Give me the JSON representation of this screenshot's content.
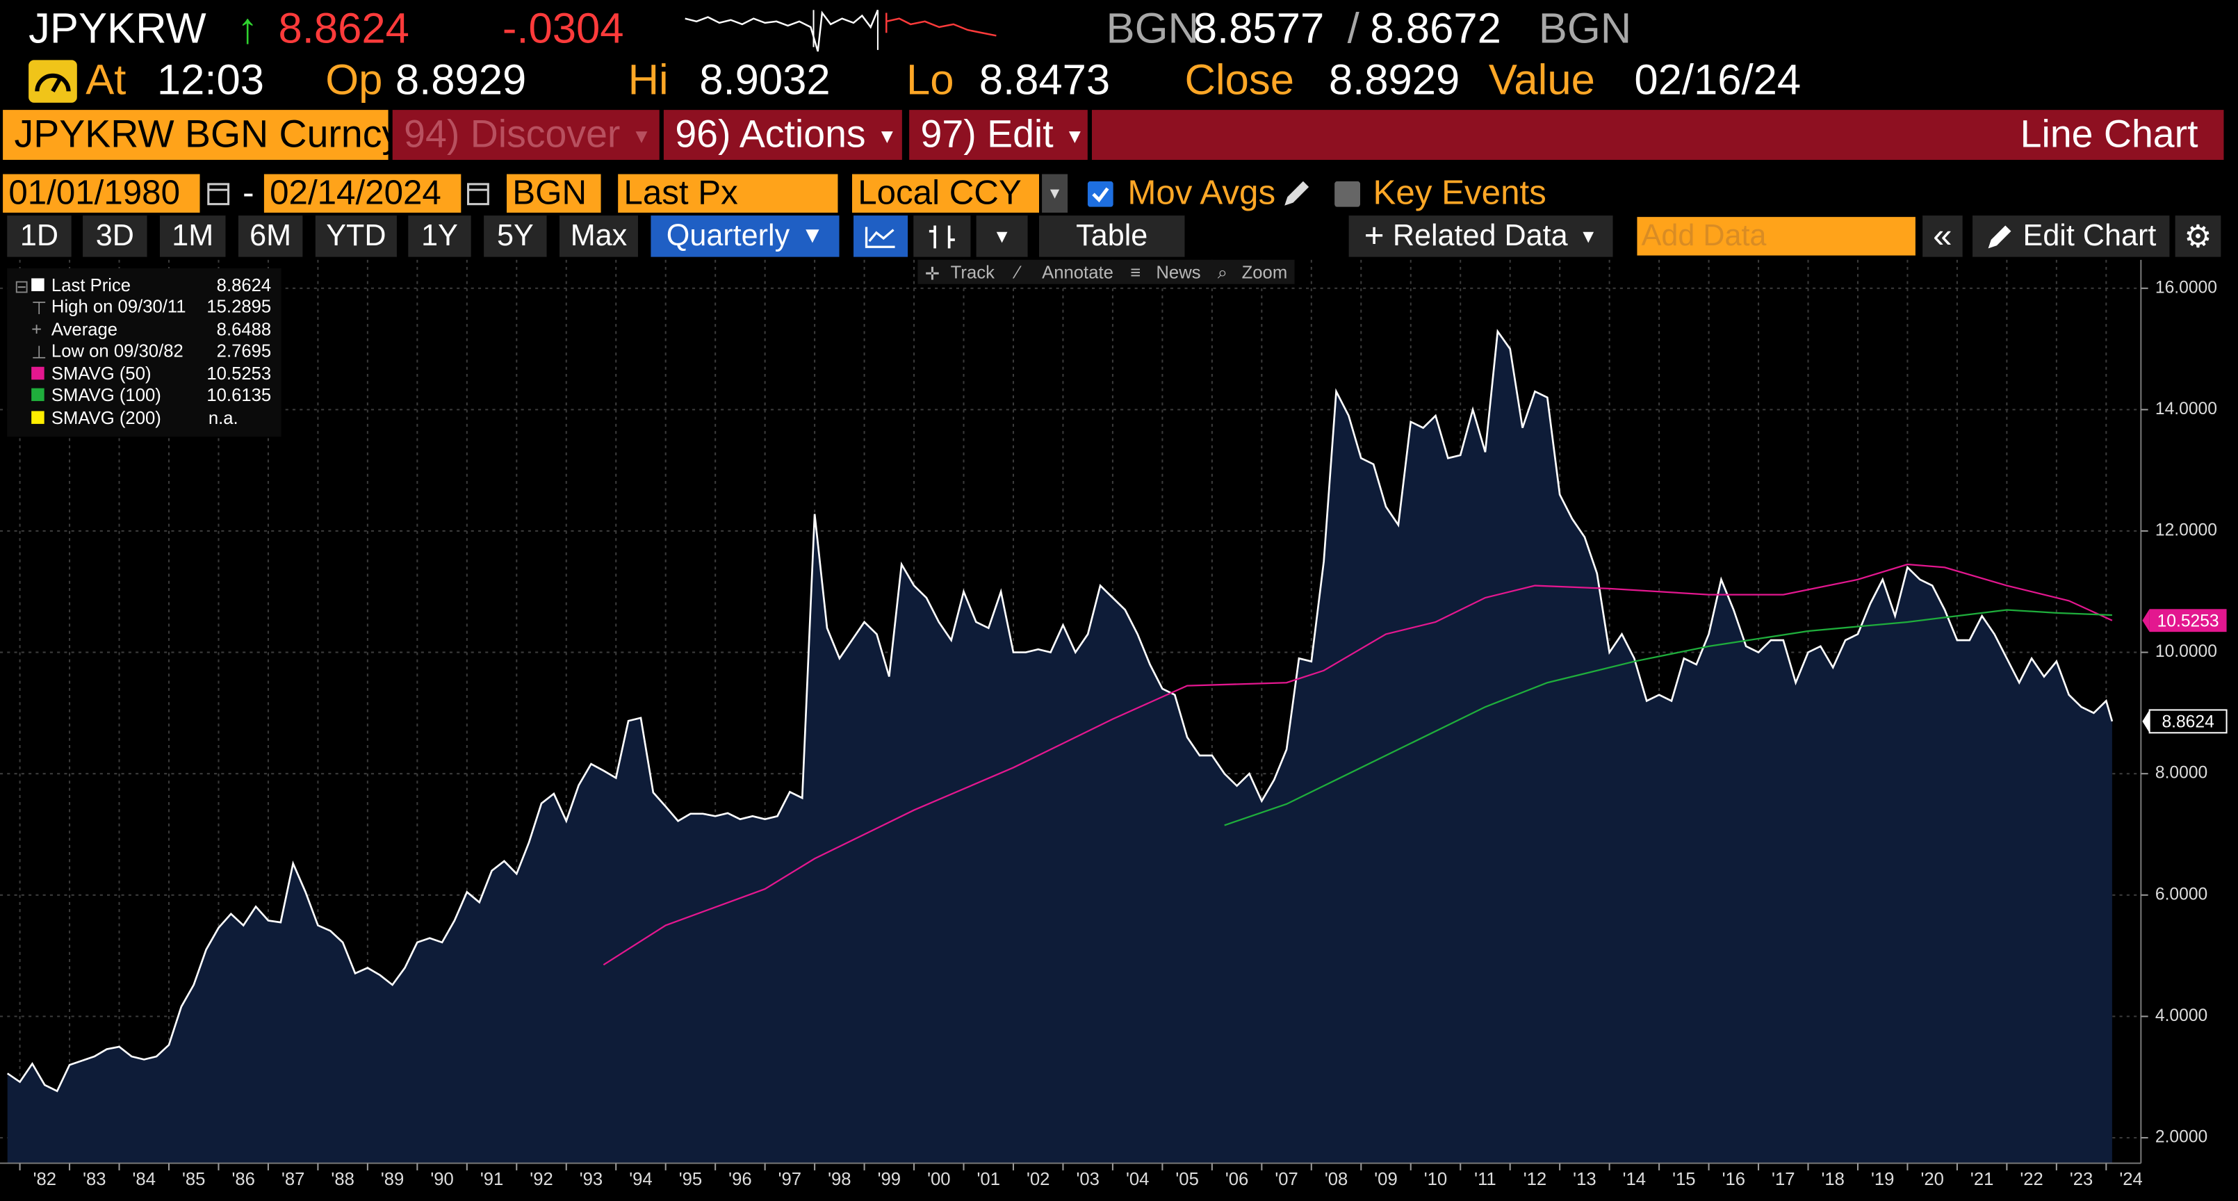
{
  "header": {
    "ticker": "JPYKRW",
    "arrow": "↑",
    "last": "8.8624",
    "change": "-.0304",
    "bid_source": "BGN",
    "bid": "8.8577",
    "slash": "/",
    "ask": "8.8672",
    "ask_source": "BGN"
  },
  "quote": {
    "at_label": "At",
    "at": "12:03",
    "open_label": "Op",
    "open": "8.8929",
    "high_label": "Hi",
    "high": "8.9032",
    "low_label": "Lo",
    "low": "8.8473",
    "close_label": "Close",
    "close": "8.8929",
    "value_label": "Value",
    "value_date": "02/16/24"
  },
  "menu": {
    "security": "JPYKRW BGN Curncy",
    "discover": "94) Discover",
    "actions": "96) Actions",
    "edit": "97) Edit",
    "view": "Line Chart"
  },
  "settings": {
    "start": "01/01/1980",
    "dash": "-",
    "end": "02/14/2024",
    "source": "BGN",
    "field": "Last Px",
    "currency": "Local CCY",
    "mov_avgs": "Mov Avgs",
    "key_events": "Key Events"
  },
  "toolbar": {
    "periods": [
      "1D",
      "3D",
      "1M",
      "6M",
      "YTD",
      "1Y",
      "5Y",
      "Max"
    ],
    "frequency": "Quarterly",
    "table": "Table",
    "related": "Related Data",
    "add_data": "Add Data",
    "edit_chart": "Edit Chart"
  },
  "chart_tools": [
    "Track",
    "Annotate",
    "News",
    "Zoom"
  ],
  "chart_data": {
    "type": "line",
    "grid": true,
    "xlim": [
      1981.6,
      2024.7
    ],
    "ylim": [
      1.58,
      16.47
    ],
    "yticks": [
      {
        "value": 2,
        "label": "2.0000"
      },
      {
        "value": 4,
        "label": "4.0000"
      },
      {
        "value": 6,
        "label": "6.0000"
      },
      {
        "value": 8,
        "label": "8.0000"
      },
      {
        "value": 10,
        "label": "10.0000"
      },
      {
        "value": 12,
        "label": "12.0000"
      },
      {
        "value": 14,
        "label": "14.0000"
      },
      {
        "value": 16,
        "label": "16.0000"
      }
    ],
    "xticks": [
      {
        "value": 1982,
        "label": "'82"
      },
      {
        "value": 1983,
        "label": "'83"
      },
      {
        "value": 1984,
        "label": "'84"
      },
      {
        "value": 1985,
        "label": "'85"
      },
      {
        "value": 1986,
        "label": "'86"
      },
      {
        "value": 1987,
        "label": "'87"
      },
      {
        "value": 1988,
        "label": "'88"
      },
      {
        "value": 1989,
        "label": "'89"
      },
      {
        "value": 1990,
        "label": "'90"
      },
      {
        "value": 1991,
        "label": "'91"
      },
      {
        "value": 1992,
        "label": "'92"
      },
      {
        "value": 1993,
        "label": "'93"
      },
      {
        "value": 1994,
        "label": "'94"
      },
      {
        "value": 1995,
        "label": "'95"
      },
      {
        "value": 1996,
        "label": "'96"
      },
      {
        "value": 1997,
        "label": "'97"
      },
      {
        "value": 1998,
        "label": "'98"
      },
      {
        "value": 1999,
        "label": "'99"
      },
      {
        "value": 2000,
        "label": "'00"
      },
      {
        "value": 2001,
        "label": "'01"
      },
      {
        "value": 2002,
        "label": "'02"
      },
      {
        "value": 2003,
        "label": "'03"
      },
      {
        "value": 2004,
        "label": "'04"
      },
      {
        "value": 2005,
        "label": "'05"
      },
      {
        "value": 2006,
        "label": "'06"
      },
      {
        "value": 2007,
        "label": "'07"
      },
      {
        "value": 2008,
        "label": "'08"
      },
      {
        "value": 2009,
        "label": "'09"
      },
      {
        "value": 2010,
        "label": "'10"
      },
      {
        "value": 2011,
        "label": "'11"
      },
      {
        "value": 2012,
        "label": "'12"
      },
      {
        "value": 2013,
        "label": "'13"
      },
      {
        "value": 2014,
        "label": "'14"
      },
      {
        "value": 2015,
        "label": "'15"
      },
      {
        "value": 2016,
        "label": "'16"
      },
      {
        "value": 2017,
        "label": "'17"
      },
      {
        "value": 2018,
        "label": "'18"
      },
      {
        "value": 2019,
        "label": "'19"
      },
      {
        "value": 2020,
        "label": "'20"
      },
      {
        "value": 2021,
        "label": "'21"
      },
      {
        "value": 2022,
        "label": "'22"
      },
      {
        "value": 2023,
        "label": "'23"
      },
      {
        "value": 2024,
        "label": "'24"
      }
    ],
    "stats": [
      {
        "label": "High on 09/30/11",
        "value": "15.2895"
      },
      {
        "label": "Average",
        "value": "8.6488"
      },
      {
        "label": "Low on 09/30/82",
        "value": "2.7695"
      }
    ],
    "series": [
      {
        "name": "Last Price",
        "color": "#ffffff",
        "area_color": "#0e1c38",
        "badge": "outline",
        "legend_value": "8.8624",
        "x": [
          1981.75,
          1982,
          1982.25,
          1982.5,
          1982.75,
          1983,
          1983.25,
          1983.5,
          1983.75,
          1984,
          1984.25,
          1984.5,
          1984.75,
          1985,
          1985.25,
          1985.5,
          1985.75,
          1986,
          1986.25,
          1986.5,
          1986.75,
          1987,
          1987.25,
          1987.5,
          1987.75,
          1988,
          1988.25,
          1988.5,
          1988.75,
          1989,
          1989.25,
          1989.5,
          1989.75,
          1990,
          1990.25,
          1990.5,
          1990.75,
          1991,
          1991.25,
          1991.5,
          1991.75,
          1992,
          1992.25,
          1992.5,
          1992.75,
          1993,
          1993.25,
          1993.5,
          1993.75,
          1994,
          1994.25,
          1994.5,
          1994.75,
          1995,
          1995.25,
          1995.5,
          1995.75,
          1996,
          1996.25,
          1996.5,
          1996.75,
          1997,
          1997.25,
          1997.5,
          1997.75,
          1998,
          1998.25,
          1998.5,
          1998.75,
          1999,
          1999.25,
          1999.5,
          1999.75,
          2000,
          2000.25,
          2000.5,
          2000.75,
          2001,
          2001.25,
          2001.5,
          2001.75,
          2002,
          2002.25,
          2002.5,
          2002.75,
          2003,
          2003.25,
          2003.5,
          2003.75,
          2004,
          2004.25,
          2004.5,
          2004.75,
          2005,
          2005.25,
          2005.5,
          2005.75,
          2006,
          2006.25,
          2006.5,
          2006.75,
          2007,
          2007.25,
          2007.5,
          2007.75,
          2008,
          2008.25,
          2008.5,
          2008.75,
          2009,
          2009.25,
          2009.5,
          2009.75,
          2010,
          2010.25,
          2010.5,
          2010.75,
          2011,
          2011.25,
          2011.5,
          2011.75,
          2012,
          2012.25,
          2012.5,
          2012.75,
          2013,
          2013.25,
          2013.5,
          2013.75,
          2014,
          2014.25,
          2014.5,
          2014.75,
          2015,
          2015.25,
          2015.5,
          2015.75,
          2016,
          2016.25,
          2016.5,
          2016.75,
          2017,
          2017.25,
          2017.5,
          2017.75,
          2018,
          2018.25,
          2018.5,
          2018.75,
          2019,
          2019.25,
          2019.5,
          2019.75,
          2020,
          2020.25,
          2020.5,
          2020.75,
          2021,
          2021.25,
          2021.5,
          2021.75,
          2022,
          2022.25,
          2022.5,
          2022.75,
          2023,
          2023.25,
          2023.5,
          2023.75,
          2024,
          2024.12
        ],
        "values": [
          3.06,
          2.92,
          3.22,
          2.87,
          2.7695,
          3.2,
          3.27,
          3.34,
          3.46,
          3.5,
          3.34,
          3.29,
          3.34,
          3.53,
          4.16,
          4.52,
          5.1,
          5.46,
          5.69,
          5.5,
          5.81,
          5.58,
          5.55,
          6.52,
          6.05,
          5.5,
          5.41,
          5.22,
          4.71,
          4.8,
          4.68,
          4.52,
          4.8,
          5.22,
          5.29,
          5.22,
          5.58,
          6.05,
          5.88,
          6.4,
          6.56,
          6.35,
          6.87,
          7.51,
          7.67,
          7.22,
          7.81,
          8.16,
          8.05,
          7.93,
          8.87,
          8.92,
          7.69,
          7.46,
          7.22,
          7.34,
          7.34,
          7.3,
          7.35,
          7.25,
          7.3,
          7.25,
          7.3,
          7.7,
          7.6,
          12.28,
          10.4,
          9.9,
          10.2,
          10.5,
          10.3,
          9.6,
          11.45,
          11.1,
          10.9,
          10.5,
          10.2,
          11.0,
          10.5,
          10.4,
          11.0,
          10.0,
          10.0,
          10.05,
          10.0,
          10.45,
          10.0,
          10.3,
          11.1,
          10.9,
          10.7,
          10.3,
          9.8,
          9.4,
          9.3,
          8.6,
          8.3,
          8.3,
          8.0,
          7.8,
          8.0,
          7.55,
          7.9,
          8.4,
          9.9,
          9.85,
          11.5,
          14.3,
          13.9,
          13.2,
          13.1,
          12.4,
          12.1,
          13.8,
          13.7,
          13.9,
          13.2,
          13.25,
          14.0,
          13.3,
          15.2895,
          15.0,
          13.7,
          14.3,
          14.2,
          12.6,
          12.2,
          11.9,
          11.3,
          10.0,
          10.3,
          9.9,
          9.2,
          9.3,
          9.2,
          9.9,
          9.8,
          10.3,
          11.2,
          10.7,
          10.1,
          10.0,
          10.2,
          10.2,
          9.5,
          10.0,
          10.1,
          9.75,
          10.2,
          10.3,
          10.8,
          11.2,
          10.6,
          11.4,
          11.2,
          11.1,
          10.7,
          10.2,
          10.2,
          10.6,
          10.3,
          9.9,
          9.5,
          9.9,
          9.6,
          9.85,
          9.3,
          9.1,
          9.0,
          9.2,
          8.8624
        ]
      },
      {
        "name": "SMAVG (50)",
        "color": "#e3178f",
        "badge": "solid",
        "legend_value": "10.5253",
        "x": [
          1993.75,
          1995,
          1997,
          1998,
          2000,
          2002,
          2004,
          2005.5,
          2007.5,
          2008.25,
          2009.5,
          2010.5,
          2011.5,
          2012.5,
          2014,
          2016,
          2017.5,
          2019,
          2020,
          2020.75,
          2022,
          2023.25,
          2024.12
        ],
        "values": [
          4.85,
          5.5,
          6.1,
          6.6,
          7.4,
          8.1,
          8.9,
          9.45,
          9.5,
          9.7,
          10.3,
          10.5,
          10.9,
          11.1,
          11.05,
          10.95,
          10.95,
          11.2,
          11.45,
          11.4,
          11.1,
          10.85,
          10.5253
        ]
      },
      {
        "name": "SMAVG (100)",
        "color": "#1fae3c",
        "legend_value": "10.6135",
        "x": [
          2006.25,
          2007.5,
          2008.5,
          2010,
          2011.5,
          2012.75,
          2014.5,
          2016,
          2018,
          2020,
          2022,
          2023,
          2024.12
        ],
        "values": [
          7.15,
          7.5,
          7.9,
          8.5,
          9.1,
          9.5,
          9.85,
          10.1,
          10.35,
          10.5,
          10.7,
          10.65,
          10.6135
        ]
      },
      {
        "name": "SMAVG (200)",
        "color": "#ffee00",
        "legend_value": "n.a.",
        "x": [],
        "values": []
      }
    ]
  }
}
